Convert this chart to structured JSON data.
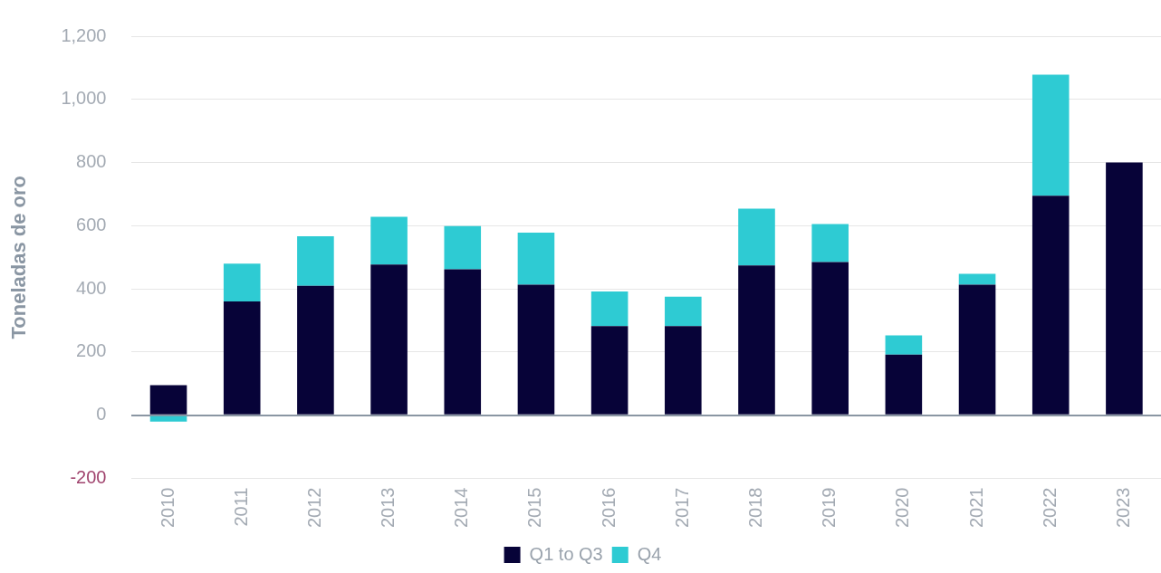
{
  "chart_data": {
    "type": "bar",
    "stacked": true,
    "ylabel": "Toneladas de oro",
    "categories": [
      "2010",
      "2011",
      "2012",
      "2013",
      "2014",
      "2015",
      "2016",
      "2017",
      "2018",
      "2019",
      "2020",
      "2021",
      "2022",
      "2023"
    ],
    "series": [
      {
        "name": "Q1 to Q3",
        "color": "#070338",
        "values": [
          95,
          360,
          410,
          477,
          462,
          413,
          282,
          282,
          474,
          485,
          192,
          413,
          695,
          800
        ]
      },
      {
        "name": "Q4",
        "color": "#2ecbd3",
        "values": [
          -20,
          120,
          157,
          151,
          137,
          165,
          110,
          93,
          180,
          120,
          61,
          35,
          383,
          null
        ]
      }
    ],
    "ylim": [
      -200,
      1200
    ],
    "yticks": [
      -200,
      0,
      200,
      400,
      600,
      800,
      {
        "value": 1000,
        "label": "1,000"
      },
      {
        "value": 1200,
        "label": "1,200"
      }
    ],
    "grid": "y",
    "legend": "bottom"
  }
}
